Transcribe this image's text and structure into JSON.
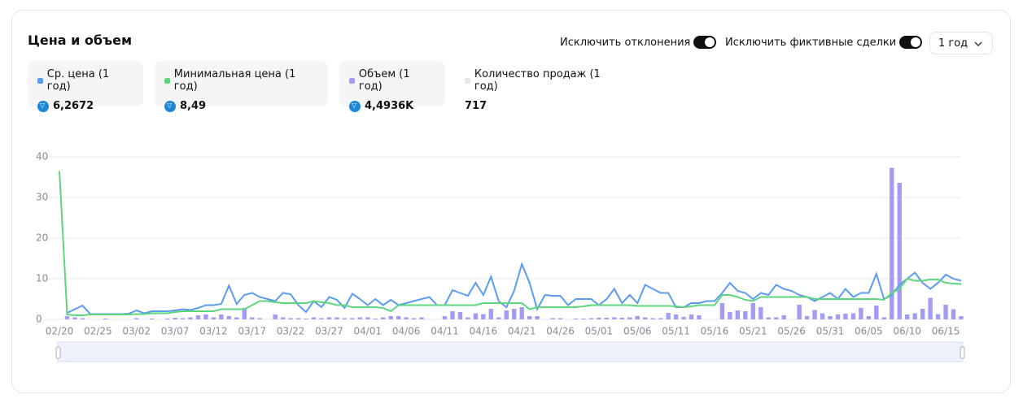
{
  "header": {
    "title": "Цена и объем",
    "toggles": [
      "Исключить отклонения",
      "Исключить фиктивные сделки"
    ],
    "period": "1 год"
  },
  "chart_data": {
    "type": "line",
    "categories": [
      "02/20",
      null,
      null,
      null,
      null,
      "02/25",
      null,
      null,
      null,
      null,
      "03/02",
      null,
      null,
      null,
      null,
      "03/07",
      null,
      null,
      null,
      null,
      "03/12",
      null,
      null,
      null,
      null,
      "03/17",
      null,
      null,
      null,
      null,
      "03/22",
      null,
      null,
      null,
      null,
      "03/27",
      null,
      null,
      null,
      null,
      "04/01",
      null,
      null,
      null,
      null,
      "04/06",
      null,
      null,
      null,
      null,
      "04/11",
      null,
      null,
      null,
      null,
      "04/16",
      null,
      null,
      null,
      null,
      "04/21",
      null,
      null,
      null,
      null,
      "04/26",
      null,
      null,
      null,
      null,
      "05/01",
      null,
      null,
      null,
      null,
      "05/06",
      null,
      null,
      null,
      null,
      "05/11",
      null,
      null,
      null,
      null,
      "05/16",
      null,
      null,
      null,
      null,
      "05/21",
      null,
      null,
      null,
      null,
      "05/26",
      null,
      null,
      null,
      null,
      "05/31",
      null,
      null,
      null,
      null,
      "06/05",
      null,
      null,
      null,
      null,
      "06/10",
      null,
      null,
      null,
      null,
      "06/15",
      null,
      null
    ],
    "ylim": [
      0,
      40
    ],
    "yticks": [
      0,
      10,
      20,
      30,
      40
    ],
    "grid": true,
    "series": [
      {
        "name": "Ср. цена (1 год)",
        "summary": "6,2672",
        "type": "line",
        "color": "#5b9cf0",
        "values": [
          null,
          1.6,
          2.5,
          3.4,
          1.3,
          1.3,
          1.3,
          1.3,
          1.3,
          1.4,
          2.2,
          1.5,
          2,
          2,
          2,
          2.2,
          2.5,
          2.3,
          2.8,
          3.5,
          3.5,
          3.8,
          8.3,
          3.8,
          6,
          6.5,
          5.5,
          5,
          4.5,
          6.5,
          6.2,
          3.5,
          1.8,
          4.5,
          3,
          5.5,
          4.8,
          2.8,
          6.3,
          5,
          3.5,
          5,
          3.5,
          4.8,
          3.5,
          4,
          4.5,
          5,
          5.5,
          3.5,
          3.5,
          7.2,
          6.5,
          5.8,
          9,
          6,
          10.5,
          4.5,
          3,
          7,
          13.6,
          9,
          2.5,
          6,
          5.8,
          5.8,
          3.5,
          5,
          5,
          5,
          3.5,
          5,
          7.5,
          4,
          6,
          4,
          8.5,
          7.5,
          6.5,
          6.5,
          3,
          3,
          4,
          4,
          4.5,
          4.5,
          6.5,
          9,
          7,
          6.5,
          5,
          6.5,
          6,
          8.5,
          7.5,
          7,
          6,
          5.5,
          4.5,
          5.5,
          6.5,
          5,
          7.5,
          5.5,
          6.5,
          6.5,
          11.2,
          5,
          6,
          8.5,
          10,
          11.5,
          9,
          7.5,
          9,
          11,
          10,
          9.5
        ]
      },
      {
        "name": "Минимальная цена (1 год)",
        "summary": "8,49",
        "type": "line",
        "color": "#5ed67d",
        "values": [
          36.5,
          1.2,
          1,
          1,
          1.2,
          1.2,
          1.2,
          1.2,
          1.2,
          1.2,
          1.3,
          1.3,
          1.5,
          1.5,
          1.5,
          1.8,
          2,
          2,
          2,
          2,
          2,
          2.5,
          2.5,
          2.5,
          2.5,
          3.5,
          4.5,
          4.5,
          4.2,
          4,
          4,
          4,
          4,
          4.5,
          4.2,
          4,
          3.5,
          3.5,
          3,
          3,
          3,
          3,
          2.8,
          2,
          3.5,
          3.5,
          3.5,
          3.5,
          3.5,
          3.5,
          3.5,
          3.5,
          3.5,
          3.5,
          3.5,
          4,
          4,
          4,
          4,
          4,
          4,
          2.5,
          3,
          3,
          3,
          3,
          3,
          3,
          3.2,
          3.5,
          3.5,
          3.5,
          3.5,
          3.5,
          3.5,
          3.3,
          3.3,
          3.3,
          3.3,
          3.3,
          3.2,
          3,
          3.2,
          3.5,
          3.5,
          3.5,
          6,
          6,
          5.5,
          4.8,
          4.5,
          5.5,
          5.5,
          5.5,
          5.5,
          5.5,
          5.5,
          5.5,
          5,
          5,
          5,
          5,
          5,
          5,
          5,
          5,
          5,
          4.8,
          6.5,
          7.5,
          10,
          9.5,
          9.5,
          9.8,
          9.8,
          9,
          8.8,
          8.7
        ]
      },
      {
        "name": "Объем (1 год)",
        "summary": "4,4936K",
        "type": "bar",
        "color": "#a39cf4",
        "values": [
          0,
          0.8,
          0.5,
          0.3,
          0,
          0,
          0.2,
          0,
          0,
          0,
          0.3,
          0,
          0.2,
          0,
          0.2,
          0.4,
          0.3,
          0.5,
          1,
          1.2,
          0.5,
          1.2,
          0.8,
          0.5,
          2.8,
          0.5,
          0.3,
          0,
          1.2,
          0.5,
          0.3,
          0.3,
          0.2,
          0.5,
          0.3,
          0.5,
          0.5,
          0.3,
          0.3,
          0.5,
          0.5,
          0.2,
          0.5,
          0.8,
          0.8,
          0.5,
          0.3,
          0.5,
          0,
          0,
          0.8,
          2,
          1.8,
          0.5,
          1.5,
          1.3,
          2.6,
          0.5,
          2.2,
          2.6,
          3,
          0.8,
          0.8,
          0,
          0.3,
          0.3,
          0,
          0.2,
          0.2,
          0.3,
          0.4,
          0.4,
          0.5,
          0.4,
          0.5,
          0.8,
          0.5,
          0.3,
          0.3,
          1.6,
          1.2,
          0.6,
          1.2,
          1,
          0,
          0,
          4,
          1.8,
          2.2,
          2,
          4,
          3,
          0.5,
          0.5,
          1,
          0,
          3.6,
          0.8,
          2.3,
          1.5,
          0.8,
          1.2,
          1.4,
          1.5,
          2.8,
          0.8,
          3.4,
          0.5,
          37.3,
          33.6,
          1.2,
          1.5,
          2.6,
          5.3,
          1.3,
          3.6,
          2.5,
          0.8
        ]
      }
    ],
    "extra_stat": {
      "name": "Количество продаж (1 год)",
      "summary": "717",
      "color": "#e6e6e8"
    }
  }
}
